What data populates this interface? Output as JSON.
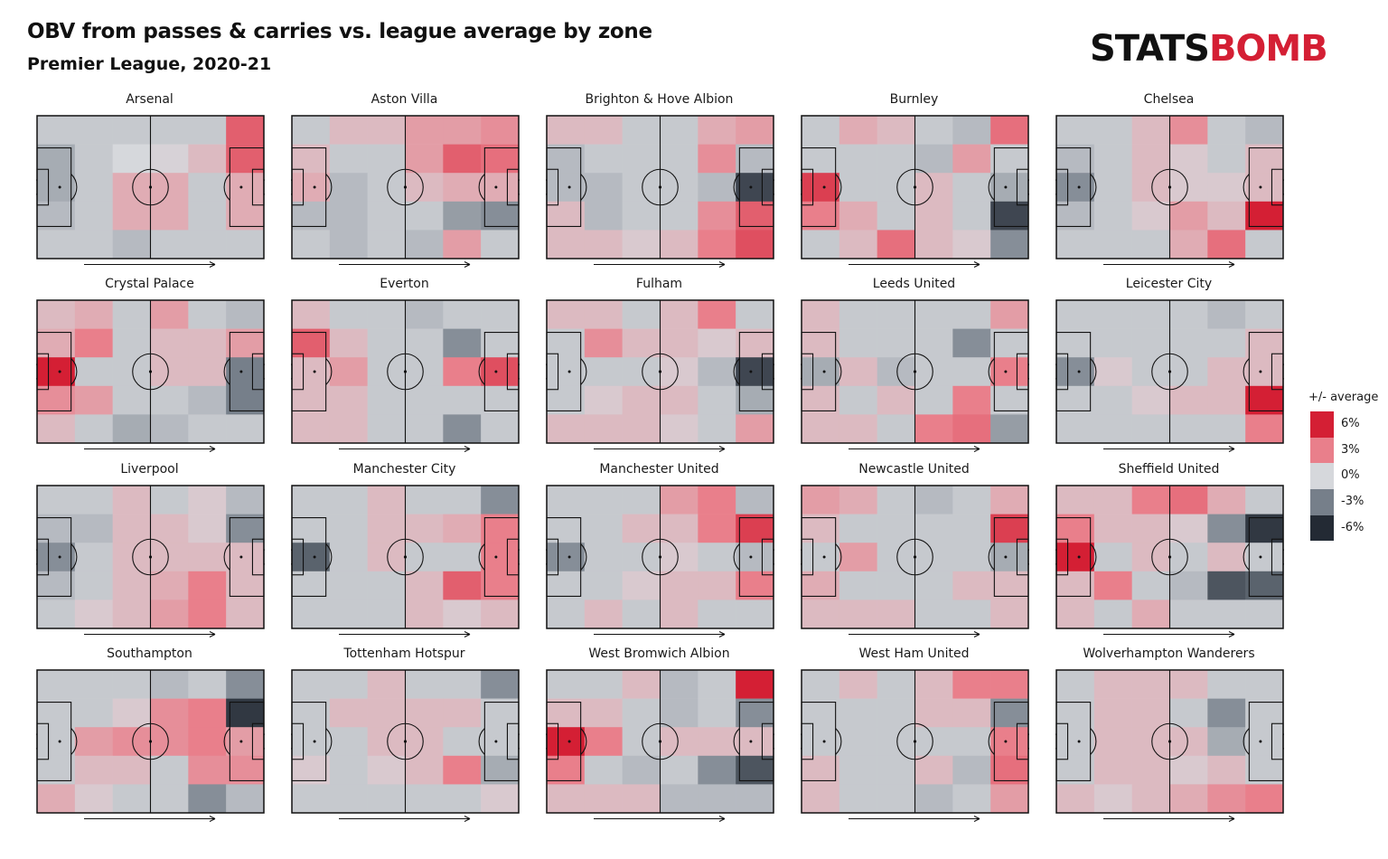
{
  "title": "OBV from passes & carries vs. league average by zone",
  "subtitle": "Premier League, 2020-21",
  "logo": {
    "part1": "STATS",
    "part2": "BOMB"
  },
  "legend": {
    "title": "+/- average",
    "items": [
      {
        "label": "6%",
        "value": 6,
        "color": "#d41f34"
      },
      {
        "label": "3%",
        "value": 3,
        "color": "#e97f8b"
      },
      {
        "label": "0%",
        "value": 0,
        "color": "#d6d8dc"
      },
      {
        "label": "-3%",
        "value": -3,
        "color": "#767f8a"
      },
      {
        "label": "-6%",
        "value": -6,
        "color": "#232a34"
      }
    ]
  },
  "chart_data": {
    "type": "heatmap",
    "title": "OBV from passes & carries vs. league average by zone",
    "subtitle": "Premier League, 2020-21",
    "zone_grid": {
      "rows": 5,
      "cols": 6
    },
    "value_unit": "% vs league average",
    "color_scale": {
      "min": -6,
      "max": 6
    },
    "teams": [
      {
        "name": "Arsenal",
        "zones": [
          [
            -0.5,
            -0.5,
            -0.5,
            -0.5,
            -0.5,
            4.0
          ],
          [
            -1.5,
            -0.5,
            0.0,
            0.2,
            1.0,
            4.0
          ],
          [
            -1.5,
            -0.5,
            1.5,
            1.5,
            -0.5,
            1.5
          ],
          [
            -1.0,
            -0.5,
            1.5,
            1.5,
            -0.5,
            1.5
          ],
          [
            -0.5,
            -0.5,
            -1.0,
            -0.5,
            -0.5,
            -0.5
          ]
        ]
      },
      {
        "name": "Aston Villa",
        "zones": [
          [
            -0.5,
            1.0,
            1.0,
            2.0,
            2.0,
            2.5
          ],
          [
            1.0,
            -0.5,
            -0.5,
            2.0,
            4.0,
            3.5
          ],
          [
            1.5,
            -1.0,
            -0.5,
            1.0,
            1.5,
            1.5
          ],
          [
            -1.0,
            -1.0,
            -0.5,
            -0.5,
            -2.0,
            -2.5
          ],
          [
            -0.5,
            -1.0,
            -0.5,
            -1.0,
            2.0,
            -0.5
          ]
        ]
      },
      {
        "name": "Brighton & Hove Albion",
        "zones": [
          [
            1.0,
            1.0,
            -0.5,
            -0.5,
            1.5,
            2.0
          ],
          [
            -1.0,
            -0.5,
            -0.5,
            -0.5,
            2.5,
            -1.0
          ],
          [
            -1.0,
            -1.0,
            -0.5,
            -0.5,
            -1.0,
            -5.0
          ],
          [
            1.0,
            -1.0,
            -0.5,
            -0.5,
            2.5,
            4.0
          ],
          [
            1.0,
            1.0,
            0.5,
            1.0,
            3.0,
            4.5
          ]
        ]
      },
      {
        "name": "Burnley",
        "zones": [
          [
            -0.5,
            1.5,
            1.0,
            -0.5,
            -1.0,
            3.5
          ],
          [
            -0.5,
            -0.5,
            -0.5,
            -1.0,
            2.0,
            -0.5
          ],
          [
            5.0,
            -0.5,
            -0.5,
            1.0,
            -0.5,
            -1.5
          ],
          [
            3.0,
            1.5,
            -0.5,
            1.0,
            -0.5,
            -5.0
          ],
          [
            -0.5,
            1.0,
            3.5,
            1.0,
            0.5,
            -2.5
          ]
        ]
      },
      {
        "name": "Chelsea",
        "zones": [
          [
            -0.5,
            -0.5,
            1.0,
            2.5,
            -0.5,
            -1.0
          ],
          [
            -1.0,
            -0.5,
            1.0,
            0.5,
            -0.5,
            1.0
          ],
          [
            -2.5,
            -0.5,
            1.0,
            0.5,
            0.5,
            1.0
          ],
          [
            -1.0,
            -0.5,
            0.5,
            2.0,
            1.0,
            6.0
          ],
          [
            -0.5,
            -0.5,
            -0.5,
            1.5,
            3.5,
            -0.5
          ]
        ]
      },
      {
        "name": "Crystal Palace",
        "zones": [
          [
            1.0,
            1.5,
            -0.5,
            2.0,
            -0.5,
            -1.0
          ],
          [
            1.5,
            3.0,
            -0.5,
            1.0,
            1.0,
            2.0
          ],
          [
            6.0,
            -0.5,
            -0.5,
            1.0,
            1.0,
            -3.0
          ],
          [
            2.5,
            2.0,
            -0.5,
            -0.5,
            -1.0,
            -3.0
          ],
          [
            1.0,
            -0.5,
            -1.5,
            -1.0,
            -0.5,
            -0.5
          ]
        ]
      },
      {
        "name": "Everton",
        "zones": [
          [
            1.0,
            -0.5,
            -0.5,
            -1.0,
            -0.5,
            -0.5
          ],
          [
            4.0,
            1.0,
            -0.5,
            -0.5,
            -2.5,
            -0.5
          ],
          [
            1.0,
            2.0,
            -0.5,
            -0.5,
            3.0,
            4.5
          ],
          [
            1.0,
            1.0,
            -0.5,
            -0.5,
            -0.5,
            -0.5
          ],
          [
            1.0,
            1.0,
            -0.5,
            -0.5,
            -2.5,
            -0.5
          ]
        ]
      },
      {
        "name": "Fulham",
        "zones": [
          [
            1.0,
            1.0,
            -0.5,
            1.0,
            3.0,
            -0.5
          ],
          [
            -0.5,
            2.5,
            1.0,
            1.0,
            0.5,
            1.0
          ],
          [
            -0.5,
            -0.5,
            -0.5,
            0.5,
            -1.0,
            -5.0
          ],
          [
            -0.5,
            0.5,
            1.0,
            1.0,
            -0.5,
            -1.5
          ],
          [
            1.0,
            1.0,
            1.0,
            0.5,
            -0.5,
            2.0
          ]
        ]
      },
      {
        "name": "Leeds United",
        "zones": [
          [
            1.0,
            -0.5,
            -0.5,
            -0.5,
            -0.5,
            2.0
          ],
          [
            1.0,
            -0.5,
            -0.5,
            -0.5,
            -2.5,
            -0.5
          ],
          [
            -1.5,
            1.0,
            -1.0,
            -0.5,
            -0.5,
            3.0
          ],
          [
            1.0,
            -0.5,
            1.0,
            -0.5,
            3.0,
            -0.5
          ],
          [
            1.0,
            1.0,
            -0.5,
            3.0,
            3.5,
            -2.0
          ]
        ]
      },
      {
        "name": "Leicester City",
        "zones": [
          [
            -0.5,
            -0.5,
            -0.5,
            -0.5,
            -1.0,
            -0.5
          ],
          [
            -0.5,
            -0.5,
            -0.5,
            -0.5,
            -0.5,
            1.0
          ],
          [
            -2.5,
            0.5,
            -0.5,
            -0.5,
            1.0,
            1.0
          ],
          [
            -0.5,
            -0.5,
            0.5,
            1.0,
            1.0,
            6.0
          ],
          [
            -0.5,
            -0.5,
            -0.5,
            -0.5,
            -0.5,
            3.0
          ]
        ]
      },
      {
        "name": "Liverpool",
        "zones": [
          [
            -0.5,
            -0.5,
            1.0,
            -0.5,
            0.5,
            -1.0
          ],
          [
            -1.0,
            -1.0,
            1.0,
            1.0,
            0.5,
            -2.5
          ],
          [
            -2.5,
            -0.5,
            1.0,
            1.0,
            1.0,
            1.0
          ],
          [
            -1.0,
            -0.5,
            1.0,
            1.5,
            3.0,
            1.0
          ],
          [
            -0.5,
            0.5,
            1.0,
            2.0,
            3.0,
            1.0
          ]
        ]
      },
      {
        "name": "Manchester City",
        "zones": [
          [
            -0.5,
            -0.5,
            1.0,
            -0.5,
            -0.5,
            -2.5
          ],
          [
            -0.5,
            -0.5,
            1.0,
            1.0,
            1.5,
            3.0
          ],
          [
            -4.0,
            -0.5,
            1.0,
            -0.5,
            -0.5,
            3.0
          ],
          [
            -0.5,
            -0.5,
            -0.5,
            1.0,
            4.0,
            3.0
          ],
          [
            -0.5,
            -0.5,
            -0.5,
            1.0,
            0.5,
            1.0
          ]
        ]
      },
      {
        "name": "Manchester United",
        "zones": [
          [
            -0.5,
            -0.5,
            -0.5,
            2.0,
            3.0,
            -1.0
          ],
          [
            -0.5,
            -0.5,
            1.0,
            1.0,
            3.0,
            5.0
          ],
          [
            -2.5,
            -0.5,
            -0.5,
            0.5,
            -0.5,
            -1.0
          ],
          [
            -0.5,
            -0.5,
            0.5,
            1.0,
            1.0,
            3.0
          ],
          [
            -0.5,
            1.0,
            -0.5,
            1.0,
            -0.5,
            -0.5
          ]
        ]
      },
      {
        "name": "Newcastle United",
        "zones": [
          [
            2.0,
            1.5,
            -0.5,
            -1.0,
            -0.5,
            1.5
          ],
          [
            1.0,
            -0.5,
            -0.5,
            -0.5,
            -0.5,
            5.0
          ],
          [
            -0.5,
            2.0,
            -0.5,
            -0.5,
            -0.5,
            -1.5
          ],
          [
            1.5,
            -0.5,
            -0.5,
            -0.5,
            1.0,
            1.0
          ],
          [
            1.0,
            1.0,
            1.0,
            -0.5,
            -0.5,
            1.0
          ]
        ]
      },
      {
        "name": "Sheffield United",
        "zones": [
          [
            1.0,
            1.0,
            3.0,
            3.5,
            1.5,
            -0.5
          ],
          [
            3.0,
            1.0,
            1.0,
            0.5,
            -2.5,
            -5.5
          ],
          [
            6.0,
            -0.5,
            1.0,
            -0.5,
            1.0,
            -0.5
          ],
          [
            1.0,
            3.0,
            -0.5,
            -1.0,
            -4.5,
            -4.0
          ],
          [
            1.0,
            -0.5,
            1.5,
            -0.5,
            -0.5,
            -0.5
          ]
        ]
      },
      {
        "name": "Southampton",
        "zones": [
          [
            -0.5,
            -0.5,
            -0.5,
            -1.0,
            -0.5,
            -2.5
          ],
          [
            -0.5,
            -0.5,
            0.5,
            2.5,
            3.0,
            -5.5
          ],
          [
            -0.5,
            2.0,
            2.5,
            2.5,
            3.0,
            2.0
          ],
          [
            -0.5,
            1.0,
            1.0,
            -0.5,
            2.5,
            2.5
          ],
          [
            1.5,
            0.5,
            -0.5,
            -0.5,
            -2.5,
            -1.0
          ]
        ]
      },
      {
        "name": "Tottenham Hotspur",
        "zones": [
          [
            -0.5,
            -0.5,
            1.0,
            -0.5,
            -0.5,
            -2.5
          ],
          [
            -0.5,
            1.0,
            1.0,
            1.0,
            1.0,
            -0.5
          ],
          [
            -0.5,
            -0.5,
            1.0,
            1.0,
            -0.5,
            -0.5
          ],
          [
            0.5,
            -0.5,
            0.5,
            1.0,
            3.0,
            -1.5
          ],
          [
            -0.5,
            -0.5,
            -0.5,
            -0.5,
            -0.5,
            0.5
          ]
        ]
      },
      {
        "name": "West Bromwich Albion",
        "zones": [
          [
            -0.5,
            -0.5,
            1.0,
            -1.0,
            -0.5,
            6.0
          ],
          [
            1.0,
            1.0,
            -0.5,
            -1.0,
            -0.5,
            -2.5
          ],
          [
            6.0,
            3.0,
            -0.5,
            1.0,
            1.0,
            1.0
          ],
          [
            3.0,
            -0.5,
            -1.0,
            -0.5,
            -2.5,
            -4.5
          ],
          [
            1.0,
            1.0,
            1.0,
            -1.0,
            -1.0,
            -1.0
          ]
        ]
      },
      {
        "name": "West Ham United",
        "zones": [
          [
            -0.5,
            1.0,
            -0.5,
            1.0,
            3.0,
            3.0
          ],
          [
            -0.5,
            -0.5,
            -0.5,
            1.0,
            1.0,
            -2.5
          ],
          [
            -0.5,
            -0.5,
            -0.5,
            -0.5,
            -0.5,
            3.0
          ],
          [
            1.0,
            -0.5,
            -0.5,
            1.0,
            -1.0,
            3.5
          ],
          [
            1.0,
            -0.5,
            -0.5,
            -1.0,
            -0.5,
            2.0
          ]
        ]
      },
      {
        "name": "Wolverhampton Wanderers",
        "zones": [
          [
            -0.5,
            1.0,
            1.0,
            1.0,
            -0.5,
            -0.5
          ],
          [
            -0.5,
            1.0,
            1.0,
            -0.5,
            -2.5,
            -0.5
          ],
          [
            -0.5,
            1.0,
            1.0,
            1.0,
            -1.5,
            -0.5
          ],
          [
            -0.5,
            1.0,
            1.0,
            0.5,
            1.0,
            -0.5
          ],
          [
            1.0,
            0.5,
            1.0,
            1.5,
            2.5,
            3.0
          ]
        ]
      }
    ]
  }
}
